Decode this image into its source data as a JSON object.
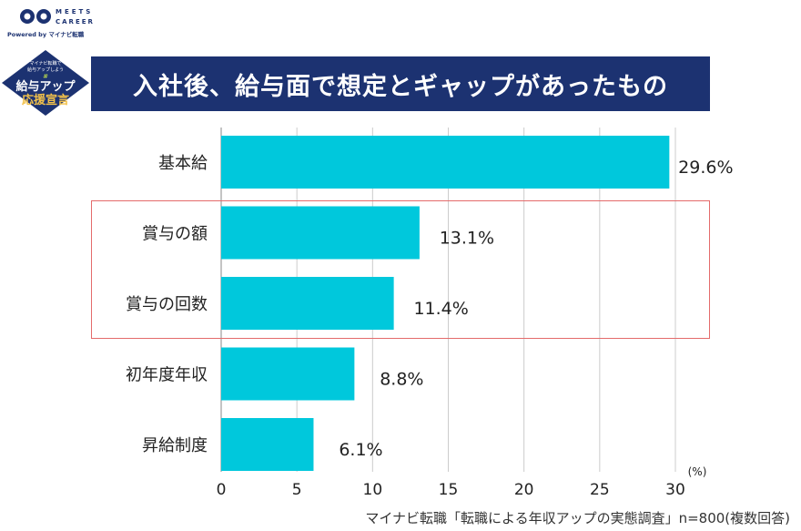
{
  "logo": {
    "text": "MEETS CAREER",
    "powered": "Powered by マイナビ転職"
  },
  "badge": {
    "line1": "マイナビ転職で",
    "line2": "給与アップしよう",
    "hash": "#",
    "main1": "給与アップ",
    "main2": "応援宣言"
  },
  "title": "入社後、給与面で想定とギャップがあったもの",
  "source": "マイナビ転職「転職による年収アップの実態調査」n=800(複数回答)",
  "colors": {
    "bar": "#00c8dc",
    "title_bg": "#1c3271",
    "highlight": "#e46b6b"
  },
  "chart_data": {
    "type": "bar",
    "orientation": "horizontal",
    "categories": [
      "基本給",
      "賞与の額",
      "賞与の回数",
      "初年度年収",
      "昇給制度"
    ],
    "values": [
      29.6,
      13.1,
      11.4,
      8.8,
      6.1
    ],
    "labels": [
      "29.6%",
      "13.1%",
      "11.4%",
      "8.8%",
      "6.1%"
    ],
    "xlim": [
      0,
      30
    ],
    "xticks": [
      "0",
      "5",
      "10",
      "15",
      "20",
      "25",
      "30"
    ],
    "xunit": "(%)",
    "grid": true,
    "highlighted": [
      "賞与の額",
      "賞与の回数"
    ]
  }
}
